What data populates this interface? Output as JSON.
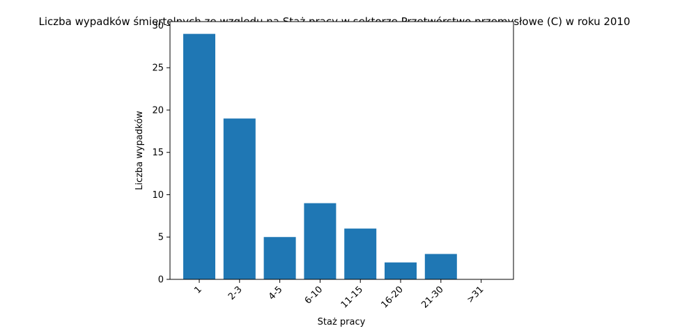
{
  "chart_data": {
    "type": "bar",
    "title": "Liczba wypadków śmiertelnych ze względu na Staż pracy w sektorze Przetwórstwo przemysłowe (C)   w roku 2010",
    "xlabel": "Staż pracy",
    "ylabel": "Liczba wypadków",
    "categories": [
      "1",
      "2-3",
      "4-5",
      "6-10",
      "11-15",
      "16-20",
      "21-30",
      ">31"
    ],
    "values": [
      29,
      19,
      5,
      9,
      6,
      2,
      3,
      0
    ],
    "ylim": [
      0,
      30.45
    ],
    "yticks": [
      0,
      5,
      10,
      15,
      20,
      25,
      30
    ],
    "bar_color": "#1f77b4",
    "grid": false,
    "legend": false
  }
}
